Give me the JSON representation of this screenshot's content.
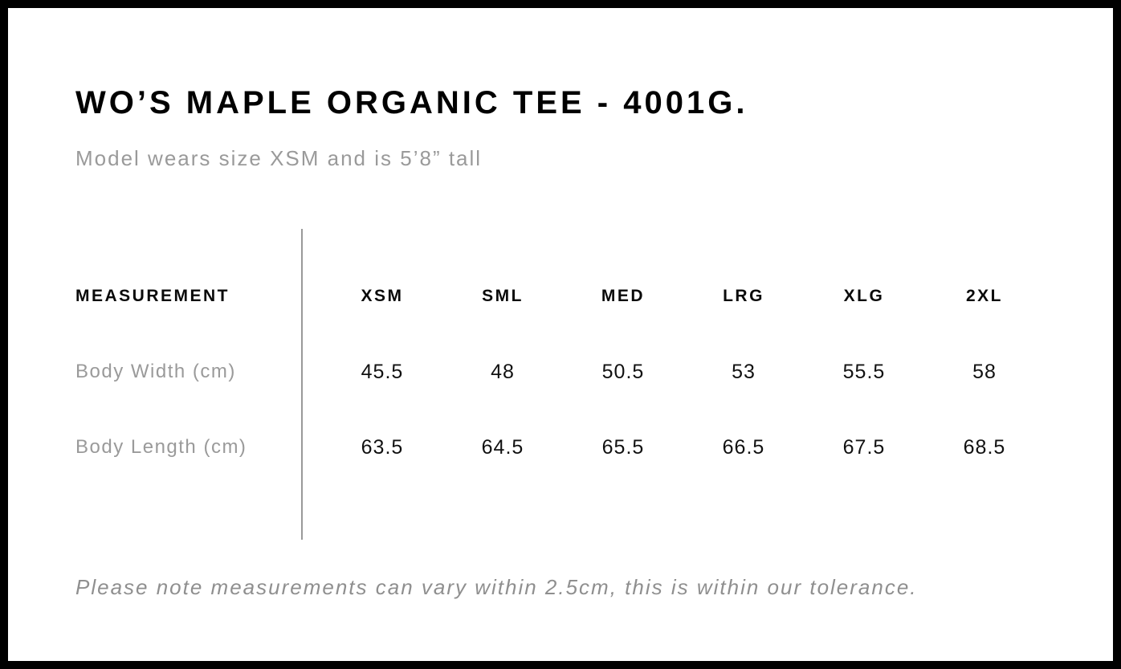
{
  "page": {
    "title": "WO’S MAPLE ORGANIC TEE - 4001G.",
    "subtitle": "Model wears size XSM and is 5’8” tall",
    "footnote": "Please note measurements can vary within 2.5cm, this is within our tolerance."
  },
  "size_chart": {
    "header": {
      "measurement_label": "MEASUREMENT",
      "sizes": [
        "XSM",
        "SML",
        "MED",
        "LRG",
        "XLG",
        "2XL"
      ]
    },
    "rows": [
      {
        "label": "Body Width (cm)",
        "values": [
          "45.5",
          "48",
          "50.5",
          "53",
          "55.5",
          "58"
        ]
      },
      {
        "label": "Body Length (cm)",
        "values": [
          "63.5",
          "64.5",
          "65.5",
          "66.5",
          "67.5",
          "68.5"
        ]
      }
    ]
  },
  "colors": {
    "background": "#ffffff",
    "border": "#000000",
    "text_primary": "#111111",
    "text_secondary": "#9a9a9a",
    "divider": "#999999"
  }
}
